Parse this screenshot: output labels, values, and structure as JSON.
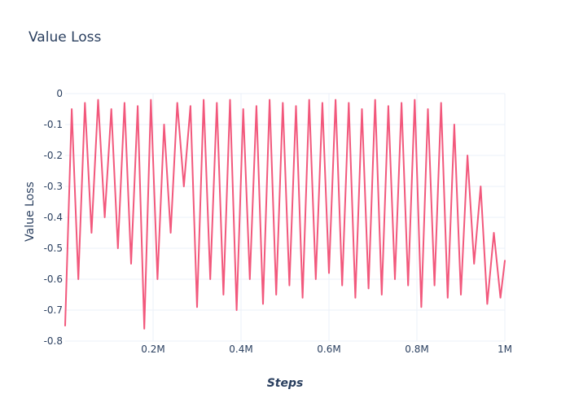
{
  "chart_data": {
    "type": "line",
    "title": "Value Loss",
    "xlabel": "Steps",
    "ylabel": "Value Loss",
    "xlim": [
      0,
      1000000
    ],
    "ylim": [
      -0.8,
      0
    ],
    "x_ticks": [
      {
        "value": 200000,
        "label": "0.2M"
      },
      {
        "value": 400000,
        "label": "0.4M"
      },
      {
        "value": 600000,
        "label": "0.6M"
      },
      {
        "value": 800000,
        "label": "0.8M"
      },
      {
        "value": 1000000,
        "label": "1M"
      }
    ],
    "y_ticks": [
      {
        "value": 0,
        "label": "0"
      },
      {
        "value": -0.1,
        "label": "-0.1"
      },
      {
        "value": -0.2,
        "label": "-0.2"
      },
      {
        "value": -0.3,
        "label": "-0.3"
      },
      {
        "value": -0.4,
        "label": "-0.4"
      },
      {
        "value": -0.5,
        "label": "-0.5"
      },
      {
        "value": -0.6,
        "label": "-0.6"
      },
      {
        "value": -0.7,
        "label": "-0.7"
      },
      {
        "value": -0.8,
        "label": "-0.8"
      }
    ],
    "grid": true,
    "series": [
      {
        "color": "#f2587c",
        "x": [
          0,
          15000,
          30000,
          45000,
          60000,
          75000,
          90000,
          105000,
          120000,
          135000,
          150000,
          165000,
          180000,
          195000,
          210000,
          225000,
          240000,
          255000,
          270000,
          285000,
          300000,
          315000,
          330000,
          345000,
          360000,
          375000,
          390000,
          405000,
          420000,
          435000,
          450000,
          465000,
          480000,
          495000,
          510000,
          525000,
          540000,
          555000,
          570000,
          585000,
          600000,
          615000,
          630000,
          645000,
          660000,
          675000,
          690000,
          705000,
          720000,
          735000,
          750000,
          765000,
          780000,
          795000,
          810000,
          825000,
          840000,
          855000,
          870000,
          885000,
          900000,
          915000,
          930000,
          945000,
          960000,
          975000,
          990000,
          1000000
        ],
        "y": [
          -0.75,
          -0.05,
          -0.6,
          -0.03,
          -0.45,
          -0.02,
          -0.4,
          -0.05,
          -0.5,
          -0.03,
          -0.55,
          -0.04,
          -0.76,
          -0.02,
          -0.6,
          -0.1,
          -0.45,
          -0.03,
          -0.3,
          -0.04,
          -0.69,
          -0.02,
          -0.6,
          -0.03,
          -0.65,
          -0.02,
          -0.7,
          -0.05,
          -0.6,
          -0.04,
          -0.68,
          -0.02,
          -0.65,
          -0.03,
          -0.62,
          -0.04,
          -0.66,
          -0.02,
          -0.6,
          -0.03,
          -0.58,
          -0.02,
          -0.62,
          -0.03,
          -0.66,
          -0.05,
          -0.63,
          -0.02,
          -0.65,
          -0.04,
          -0.6,
          -0.03,
          -0.62,
          -0.02,
          -0.69,
          -0.05,
          -0.62,
          -0.03,
          -0.66,
          -0.1,
          -0.65,
          -0.2,
          -0.55,
          -0.3,
          -0.68,
          -0.45,
          -0.66,
          -0.54
        ]
      }
    ]
  }
}
